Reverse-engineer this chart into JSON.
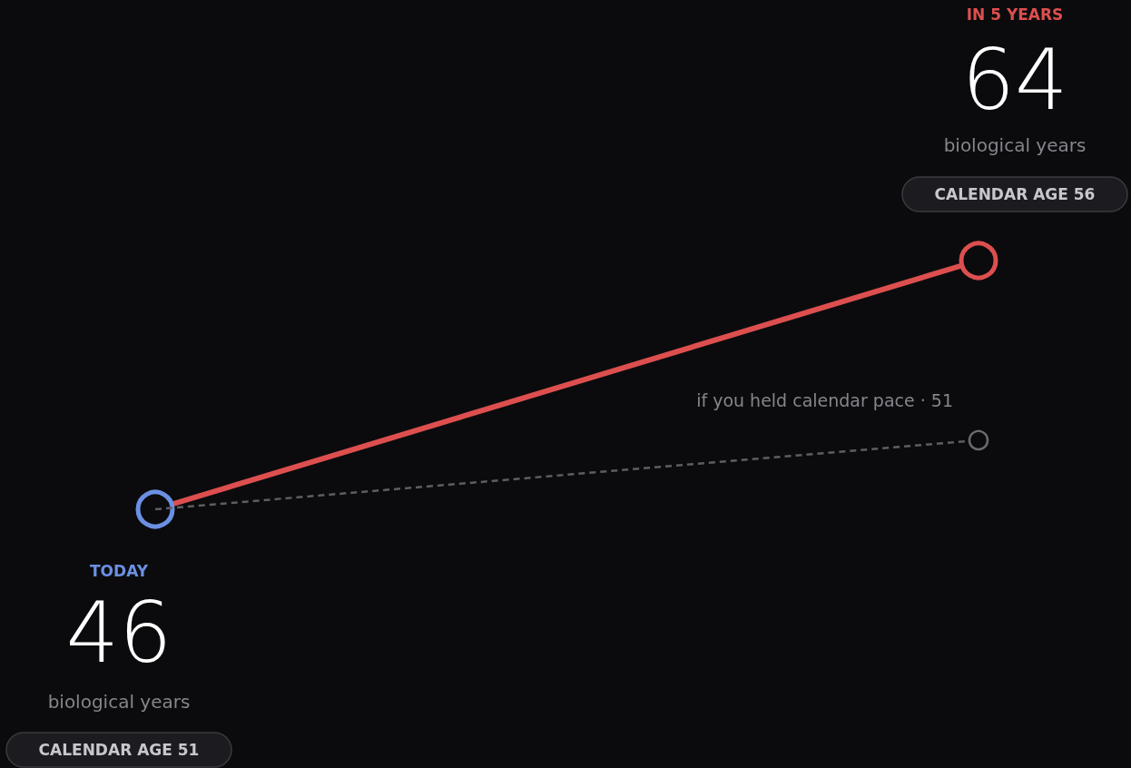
{
  "chart_data": {
    "type": "line",
    "categories": [
      null,
      null
    ],
    "series": [
      {
        "color": "#dd4f4f",
        "colors": [
          "#6b8fe3",
          "#dd4f4f"
        ],
        "values": [
          46,
          64
        ],
        "value_labels": [
          "46",
          "64"
        ],
        "line_style": "solid",
        "marker": "circle"
      },
      {
        "color": "#5d5d63",
        "values": [
          46,
          51
        ],
        "line_style": "dashed",
        "marker": "circle"
      }
    ],
    "tick_labels": false,
    "annotations": [
      "TODAY",
      "biological years",
      "CALENDAR AGE 51",
      "IN 5 YEARS",
      "biological years",
      "CALENDAR AGE 56",
      "if you held calendar pace · 51"
    ]
  }
}
